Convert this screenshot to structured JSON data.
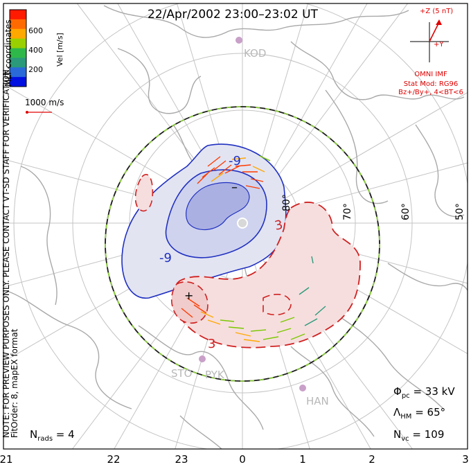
{
  "title": "22/Apr/2002 23:00–23:02 UT",
  "colorbar": {
    "label": "Vel [m/s]",
    "ticks": [
      "600",
      "400",
      "200"
    ],
    "colors": [
      "#ff1a00",
      "#ff6a00",
      "#ffa800",
      "#9ad000",
      "#2fb84a",
      "#2a9a7a",
      "#2a6ad8",
      "#0010e0"
    ]
  },
  "side_label": "MLT coordinates",
  "scale_label": "1000 m/s",
  "imf": {
    "z_label": "+Z (5 nT)",
    "y_label": "+Y",
    "source": "OMNI IMF",
    "model": "Stat Mod: RG96",
    "condition": "Bz+/By+, 4<BT<6"
  },
  "lat_labels": [
    "80°",
    "70°",
    "60°",
    "50°"
  ],
  "stations": [
    "KOD",
    "STO",
    "PYK",
    "HAN"
  ],
  "contours": {
    "neg": "-9",
    "neg2": "-9",
    "neg_center": "–",
    "pos": "3",
    "pos2": "3",
    "pos_center": "+"
  },
  "notes": {
    "line1": "NOTE: FOR PREVIEW PURPOSES ONLY. PLEASE CONTACT VT-SD STAFF FOR VERIFICATION.",
    "line2": "FitOrder: 8, mapEX format"
  },
  "stats": {
    "phi": "Φ",
    "phi_sub": "pc",
    "phi_val": " = 33 kV",
    "lam": "Λ",
    "lam_sub": "HM",
    "lam_val": " = 65°",
    "nvc": "N",
    "nvc_sub": "vc",
    "nvc_val": " = 109"
  },
  "nrads": {
    "n": "N",
    "sub": "rads",
    "val": " = 4"
  },
  "mlt_axis": [
    "21",
    "22",
    "23",
    "0",
    "1",
    "2",
    "3"
  ]
}
